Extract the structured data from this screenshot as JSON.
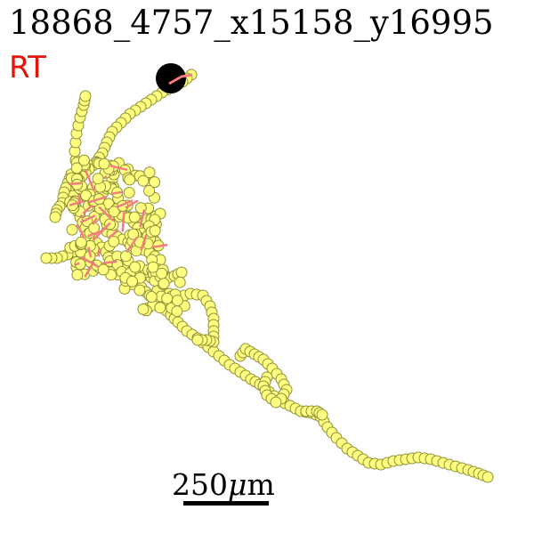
{
  "title": "18868_4757_x15158_y16995",
  "tag": "RT",
  "scale_bar": {
    "value": "250",
    "unit_prefix": "μ",
    "unit_suffix": "m"
  },
  "colors": {
    "trace_line": "#f47c7c",
    "node_fill": "#ffff80",
    "node_stroke": "#8f8f3a",
    "soma": "#000000",
    "tag": "#e8140c"
  }
}
